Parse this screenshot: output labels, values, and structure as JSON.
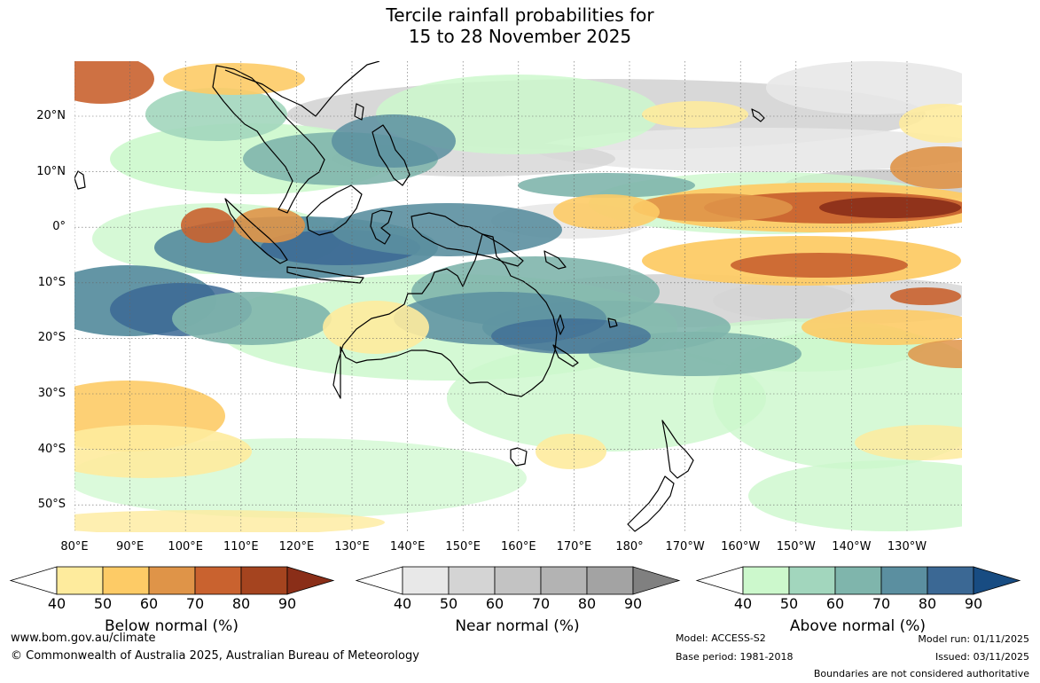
{
  "title": {
    "line1": "Tercile rainfall probabilities for",
    "line2": "15 to 28 November 2025"
  },
  "axes": {
    "lat_labels": [
      "20°N",
      "10°N",
      "0°",
      "10°S",
      "20°S",
      "30°S",
      "40°S",
      "50°S"
    ],
    "lon_labels": [
      "80°E",
      "90°E",
      "100°E",
      "110°E",
      "120°E",
      "130°E",
      "140°E",
      "150°E",
      "160°E",
      "170°E",
      "180°",
      "170°W",
      "160°W",
      "150°W",
      "140°W",
      "130°W"
    ]
  },
  "legends": {
    "below": {
      "title": "Below normal (%)",
      "ticks": [
        "40",
        "50",
        "60",
        "70",
        "80",
        "90"
      ],
      "colors": [
        "#ffffff",
        "#feeb9d",
        "#fdcb66",
        "#df9448",
        "#c9622f",
        "#a5441f",
        "#8a2e18"
      ]
    },
    "near": {
      "title": "Near normal (%)",
      "ticks": [
        "40",
        "50",
        "60",
        "70",
        "80",
        "90"
      ],
      "colors": [
        "#ffffff",
        "#e8e8e8",
        "#d4d4d4",
        "#c3c3c3",
        "#b3b3b3",
        "#a3a3a3",
        "#808080"
      ]
    },
    "above": {
      "title": "Above normal (%)",
      "ticks": [
        "40",
        "50",
        "60",
        "70",
        "80",
        "90"
      ],
      "colors": [
        "#ffffff",
        "#ccf8cc",
        "#a2d6bd",
        "#7fb5ac",
        "#5b8fa0",
        "#3b6894",
        "#184c82"
      ]
    }
  },
  "footer": {
    "website": "www.bom.gov.au/climate",
    "copyright": "© Commonwealth of Australia 2025, Australian Bureau of Meteorology",
    "model": "Model: ACCESS-S2",
    "base_period": "Base period: 1981-2018",
    "model_run": "Model run: 01/11/2025",
    "issued": "Issued: 03/11/2025",
    "boundaries": "Boundaries are not considered authoritative"
  }
}
